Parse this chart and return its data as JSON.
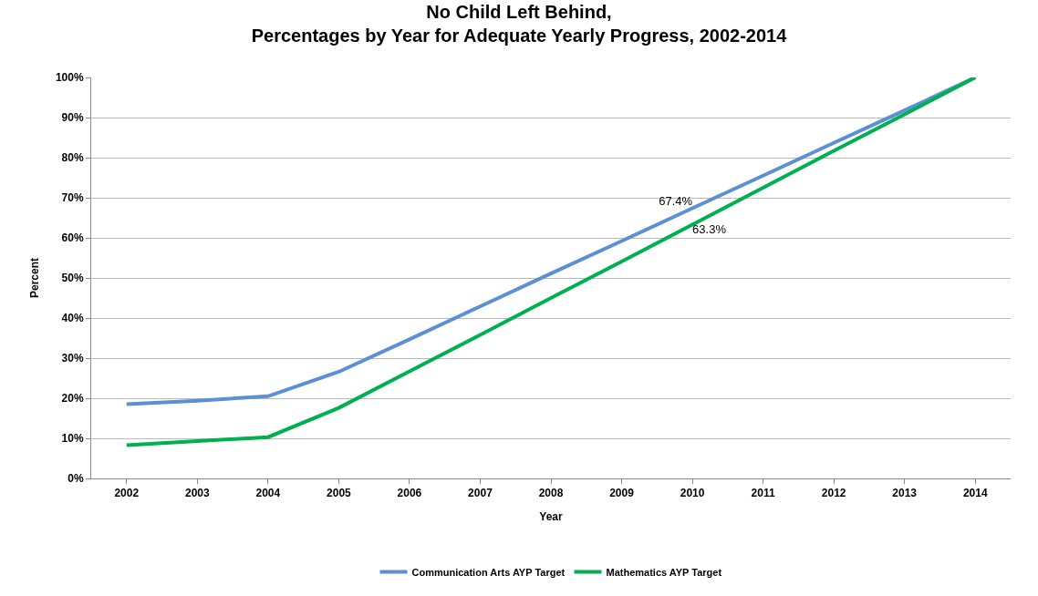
{
  "chart_data": {
    "type": "line",
    "title": "No Child Left Behind,\nPercentages by Year for Adequate Yearly Progress, 2002-2014",
    "xlabel": "Year",
    "ylabel": "Percent",
    "categories": [
      "2002",
      "2003",
      "2004",
      "2005",
      "2006",
      "2007",
      "2008",
      "2009",
      "2010",
      "2011",
      "2012",
      "2013",
      "2014"
    ],
    "series": [
      {
        "name": "Communication Arts AYP Target",
        "color": "#5b8fd6",
        "values": [
          18.5,
          19.4,
          20.5,
          26.6,
          34.7,
          42.9,
          51.1,
          59.2,
          67.4,
          75.5,
          83.7,
          91.8,
          100
        ],
        "value_labels": [
          null,
          null,
          null,
          null,
          null,
          null,
          null,
          null,
          "67.4%",
          null,
          null,
          null,
          null
        ]
      },
      {
        "name": "Mathematics AYP Target",
        "color": "#00b050",
        "values": [
          8.3,
          9.3,
          10.3,
          17.6,
          26.7,
          35.8,
          45.0,
          54.1,
          63.3,
          72.5,
          81.7,
          90.8,
          100
        ],
        "value_labels": [
          null,
          null,
          null,
          null,
          null,
          null,
          null,
          null,
          "63.3%",
          null,
          null,
          null,
          null
        ]
      }
    ],
    "ylim": [
      0,
      100
    ],
    "yticks": [
      {
        "value": 0,
        "label": "0%"
      },
      {
        "value": 10,
        "label": "10%"
      },
      {
        "value": 20,
        "label": "20%"
      },
      {
        "value": 30,
        "label": "30%"
      },
      {
        "value": 40,
        "label": "40%"
      },
      {
        "value": 50,
        "label": "50%"
      },
      {
        "value": 60,
        "label": "60%"
      },
      {
        "value": 70,
        "label": "70%"
      },
      {
        "value": 80,
        "label": "80%"
      },
      {
        "value": 90,
        "label": "90%"
      },
      {
        "value": 100,
        "label": "100%"
      }
    ],
    "grid": "y",
    "legend": "bottom",
    "marker": "none",
    "line_style": "solid"
  }
}
